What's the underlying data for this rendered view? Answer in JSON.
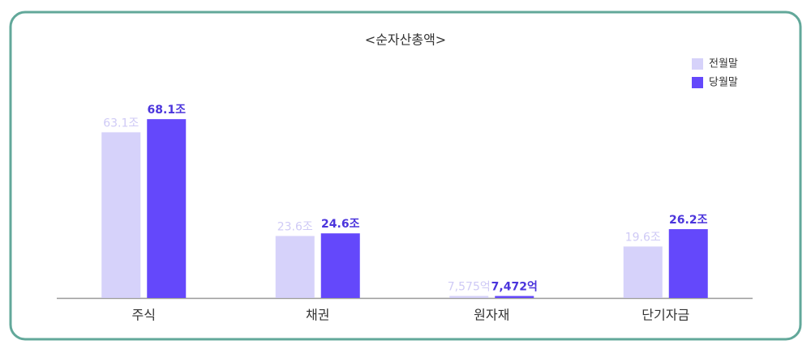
{
  "chart_data": {
    "type": "bar",
    "title": "<순자산총액>",
    "categories": [
      "주식",
      "채권",
      "원자재",
      "단기자금"
    ],
    "series": [
      {
        "name": "전월말",
        "color": "#d6d2fa",
        "values": [
          63.1,
          23.6,
          0.7575,
          19.6
        ],
        "value_labels": [
          "63.1조",
          "23.6조",
          "7,575억",
          "19.6조"
        ]
      },
      {
        "name": "당월말",
        "color": "#6448fb",
        "values": [
          68.1,
          24.6,
          0.7472,
          26.2
        ],
        "value_labels": [
          "68.1조",
          "24.6조",
          "7,472억",
          "26.2조"
        ]
      }
    ],
    "ylim": [
      0,
      70
    ],
    "legend": "top-right",
    "grid": false
  }
}
